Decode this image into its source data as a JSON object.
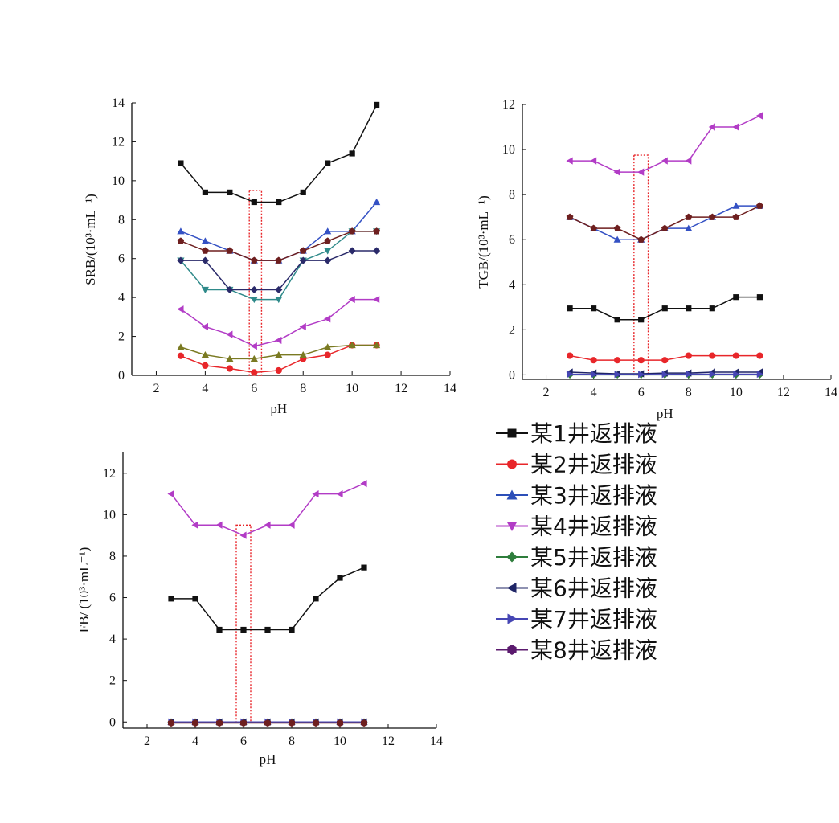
{
  "chart_data": [
    {
      "type": "line",
      "panel": "SRB",
      "xlabel": "pH",
      "ylabel": "SRB/(10³·mL⁻¹)",
      "xlim": [
        1,
        14
      ],
      "ylim": [
        0,
        14
      ],
      "xticks": [
        2,
        4,
        6,
        8,
        10,
        12,
        14
      ],
      "yticks": [
        0,
        2,
        4,
        6,
        8,
        10,
        12,
        14
      ],
      "x": [
        3,
        4,
        5,
        6,
        7,
        8,
        9,
        10,
        11
      ],
      "highlight": {
        "x": [
          5.8,
          6.3
        ],
        "y": [
          0,
          9.5
        ]
      },
      "series": [
        {
          "name": "某1井返排液",
          "values": [
            10.9,
            9.4,
            9.4,
            8.9,
            8.9,
            9.4,
            10.9,
            11.4,
            13.9
          ]
        },
        {
          "name": "某2井返排液",
          "values": [
            1.0,
            0.5,
            0.35,
            0.15,
            0.25,
            0.85,
            1.05,
            1.55,
            1.55
          ]
        },
        {
          "name": "某3井返排液",
          "values": [
            7.4,
            6.9,
            6.4,
            5.9,
            5.9,
            6.4,
            7.4,
            7.4,
            8.9
          ]
        },
        {
          "name": "某4井返排液",
          "values": [
            5.9,
            4.4,
            4.4,
            3.9,
            3.9,
            5.9,
            6.4,
            7.4,
            7.4
          ]
        },
        {
          "name": "某5井返排液",
          "values": [
            1.45,
            1.05,
            0.85,
            0.85,
            1.05,
            1.05,
            1.45,
            1.55,
            1.55
          ]
        },
        {
          "name": "某6井返排液",
          "values": [
            5.9,
            5.9,
            4.4,
            4.4,
            4.4,
            5.9,
            5.9,
            6.4,
            6.4
          ]
        },
        {
          "name": "某7井返排液",
          "values": [
            3.4,
            2.5,
            2.1,
            1.5,
            1.8,
            2.5,
            2.9,
            3.9,
            3.9
          ]
        },
        {
          "name": "某8井返排液",
          "values": [
            6.9,
            6.4,
            6.4,
            5.9,
            5.9,
            6.4,
            6.9,
            7.4,
            7.4
          ]
        }
      ]
    },
    {
      "type": "line",
      "panel": "TGB",
      "xlabel": "pH",
      "ylabel": "TGB/(10³·mL⁻¹)",
      "xlim": [
        1,
        14
      ],
      "ylim": [
        -0.2,
        12
      ],
      "xticks": [
        2,
        4,
        6,
        8,
        10,
        12,
        14
      ],
      "yticks": [
        0,
        2,
        4,
        6,
        8,
        10,
        12
      ],
      "x": [
        3,
        4,
        5,
        6,
        7,
        8,
        9,
        10,
        11
      ],
      "highlight": {
        "x": [
          5.7,
          6.3
        ],
        "y": [
          0,
          9.75
        ]
      },
      "series": [
        {
          "name": "某1井返排液",
          "values": [
            2.95,
            2.95,
            2.45,
            2.45,
            2.95,
            2.95,
            2.95,
            3.45,
            3.45
          ]
        },
        {
          "name": "某2井返排液",
          "values": [
            0.85,
            0.65,
            0.65,
            0.65,
            0.65,
            0.85,
            0.85,
            0.85,
            0.85
          ]
        },
        {
          "name": "某3井返排液",
          "values": [
            7.0,
            6.5,
            6.0,
            6.0,
            6.5,
            6.5,
            7.0,
            7.5,
            7.5
          ]
        },
        {
          "name": "某4井返排液",
          "values": [
            9.5,
            9.5,
            9.0,
            9.0,
            9.5,
            9.5,
            11.0,
            11.0,
            11.5
          ]
        },
        {
          "name": "某5井返排液",
          "values": [
            0.0,
            0.0,
            0.0,
            0.0,
            0.0,
            0.0,
            0.0,
            0.0,
            0.0
          ]
        },
        {
          "name": "某6井返排液",
          "values": [
            0.12,
            0.08,
            0.05,
            0.05,
            0.08,
            0.08,
            0.12,
            0.12,
            0.12
          ]
        },
        {
          "name": "某7井返排液",
          "values": [
            0.03,
            0.02,
            0.02,
            0.02,
            0.02,
            0.03,
            0.03,
            0.03,
            0.03
          ]
        },
        {
          "name": "某8井返排液",
          "values": [
            7.0,
            6.5,
            6.5,
            6.0,
            6.5,
            7.0,
            7.0,
            7.0,
            7.5
          ]
        }
      ]
    },
    {
      "type": "line",
      "panel": "FB",
      "xlabel": "pH",
      "ylabel": "FB/ (10³·mL⁻¹)",
      "xlim": [
        1,
        14
      ],
      "ylim": [
        -0.3,
        13
      ],
      "xticks": [
        2,
        4,
        6,
        8,
        10,
        12,
        14
      ],
      "yticks": [
        0,
        2,
        4,
        6,
        8,
        10,
        12
      ],
      "x": [
        3,
        4,
        5,
        6,
        7,
        8,
        9,
        10,
        11
      ],
      "highlight": {
        "x": [
          5.7,
          6.3
        ],
        "y": [
          0,
          9.5
        ]
      },
      "series": [
        {
          "name": "某1井返排液",
          "values": [
            5.95,
            5.95,
            4.45,
            4.45,
            4.45,
            4.45,
            5.95,
            6.95,
            7.45
          ]
        },
        {
          "name": "某2井返排液",
          "values": [
            0.0,
            0.0,
            0.0,
            0.0,
            0.0,
            0.0,
            0.0,
            0.0,
            0.0
          ]
        },
        {
          "name": "某3井返排液",
          "values": [
            0.0,
            0.0,
            0.0,
            0.0,
            0.0,
            0.0,
            0.0,
            0.0,
            0.0
          ]
        },
        {
          "name": "某4井返排液",
          "values": [
            11.0,
            9.5,
            9.5,
            9.0,
            9.5,
            9.5,
            11.0,
            11.0,
            11.5
          ]
        },
        {
          "name": "某5井返排液",
          "values": [
            0.0,
            0.0,
            0.0,
            0.0,
            0.0,
            0.0,
            0.0,
            0.0,
            0.0
          ]
        },
        {
          "name": "某6井返排液",
          "values": [
            0.0,
            0.0,
            0.0,
            0.0,
            0.0,
            0.0,
            0.0,
            0.0,
            0.0
          ]
        },
        {
          "name": "某7井返排液",
          "values": [
            0.0,
            0.0,
            0.0,
            0.0,
            0.0,
            0.0,
            0.0,
            0.0,
            0.0
          ]
        },
        {
          "name": "某8井返排液",
          "values": [
            -0.05,
            -0.05,
            -0.05,
            -0.05,
            -0.05,
            -0.05,
            -0.05,
            -0.05,
            -0.05
          ]
        }
      ]
    }
  ],
  "legend": [
    {
      "name": "某1井返排液",
      "color": "#111111",
      "marker": "square"
    },
    {
      "name": "某2井返排液",
      "color": "#e8262a",
      "marker": "circle"
    },
    {
      "name": "某3井返排液",
      "color": "#2c4fb8",
      "marker": "triangle-up"
    },
    {
      "name": "某4井返排液",
      "color": "#b23cc6",
      "marker": "triangle-down"
    },
    {
      "name": "某5井返排液",
      "color": "#2e7d3c",
      "marker": "diamond"
    },
    {
      "name": "某6井返排液",
      "color": "#1f2566",
      "marker": "triangle-left"
    },
    {
      "name": "某7井返排液",
      "color": "#4646b4",
      "marker": "triangle-right"
    },
    {
      "name": "某8井返排液",
      "color": "#5b1a6e",
      "marker": "hexagon"
    }
  ],
  "styles": {
    "SRB": [
      "#111111",
      "#e8262a",
      "#3451c4",
      "#2f8a8a",
      "#7a7a22",
      "#2a2a6a",
      "#b23cc6",
      "#6e1f1f"
    ],
    "SRB_markers": [
      "square",
      "circle",
      "triangle-up",
      "triangle-down",
      "triangle-up",
      "diamond",
      "triangle-left",
      "pentagon"
    ],
    "TGB": [
      "#111111",
      "#e8262a",
      "#3451c4",
      "#b23cc6",
      "#2e7d3c",
      "#1f2566",
      "#4646b4",
      "#6e1f1f"
    ],
    "TGB_markers": [
      "square",
      "circle",
      "triangle-up",
      "triangle-left",
      "diamond",
      "triangle-left",
      "triangle-right",
      "pentagon"
    ],
    "FB": [
      "#111111",
      "#e8262a",
      "#3451c4",
      "#b23cc6",
      "#2e7d3c",
      "#1f2566",
      "#4646b4",
      "#6e1f1f"
    ],
    "FB_markers": [
      "square",
      "circle",
      "triangle-up",
      "triangle-left",
      "diamond",
      "triangle-left",
      "triangle-right",
      "hexagon"
    ],
    "highlight_color": "#e8262a"
  }
}
